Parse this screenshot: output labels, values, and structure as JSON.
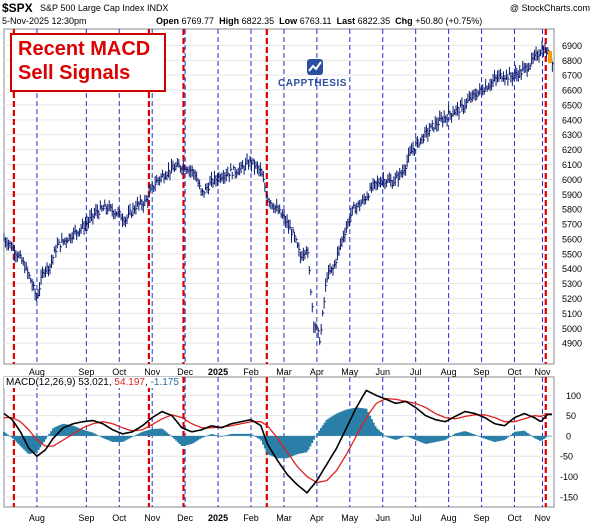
{
  "header": {
    "symbol": "$SPX",
    "name": "S&P 500 Large Cap Index",
    "exchange": "INDX",
    "brand": "@ StockCharts.com",
    "date": "5-Nov-2025 12:30pm",
    "open_label": "Open",
    "open": "6769.77",
    "high_label": "High",
    "high": "6822.35",
    "low_label": "Low",
    "low": "6763.11",
    "last_label": "Last",
    "last": "6822.35",
    "chg_label": "Chg",
    "chg": "+50.80 (+0.75%)"
  },
  "callout": {
    "line1": "Recent MACD",
    "line2": "Sell Signals"
  },
  "brand_logo": {
    "text": "CAPPTHESIS",
    "color": "#2a4f9e"
  },
  "macd_legend": {
    "key": "MACD(12,26,9)",
    "macd": "53.021",
    "signal": "54.197",
    "histogram": "-1.175"
  },
  "colors": {
    "price": "#0b1a6e",
    "macd_line": "#000000",
    "signal_line": "#e02020",
    "histogram": "#2a7fa8",
    "sell_signal": "#dd0000",
    "month_line": "#2233cc"
  },
  "chart_data": [
    {
      "type": "line",
      "subtype": "price-bars",
      "y_ticks": [
        4900,
        5000,
        5100,
        5200,
        5300,
        5400,
        5500,
        5600,
        5700,
        5800,
        5900,
        6000,
        6100,
        6200,
        6300,
        6400,
        6500,
        6600,
        6700,
        6800,
        6900
      ],
      "ylim": [
        4760,
        7010
      ],
      "x_month_labels": [
        "Aug",
        "Sep",
        "Oct",
        "Nov",
        "Dec",
        "2025",
        "Feb",
        "Mar",
        "Apr",
        "May",
        "Jun",
        "Jul",
        "Aug",
        "Sep",
        "Oct",
        "Nov"
      ],
      "x_month_index": [
        0,
        1.5,
        2.5,
        3.5,
        4.5,
        5.5,
        6.5,
        7.5,
        8.5,
        9.5,
        10.5,
        11.5,
        12.5,
        13.5,
        14.5,
        15.35
      ],
      "x_range": [
        -1,
        15.7
      ],
      "series": [
        {
          "x": [
            -1,
            -0.8,
            -0.6,
            -0.4,
            -0.2,
            0,
            0.2,
            0.4,
            0.6,
            0.9,
            1.2,
            1.5,
            1.8,
            2.1,
            2.4,
            2.7,
            3.0,
            3.3,
            3.6,
            3.9,
            4.2,
            4.5,
            4.8,
            5.0,
            5.3,
            5.6,
            5.9,
            6.2,
            6.5,
            6.8,
            7.0,
            7.2,
            7.5,
            7.8,
            8.0,
            8.2,
            8.4,
            8.6,
            8.8,
            9.0,
            9.3,
            9.6,
            9.9,
            10.2,
            10.5,
            10.8,
            11.1,
            11.4,
            11.7,
            12.0,
            12.3,
            12.6,
            12.9,
            13.2,
            13.5,
            13.8,
            14.1,
            14.4,
            14.7,
            15.0,
            15.2,
            15.35,
            15.5,
            15.65
          ],
          "values": [
            5600,
            5560,
            5500,
            5430,
            5330,
            5200,
            5390,
            5420,
            5550,
            5600,
            5650,
            5700,
            5780,
            5810,
            5780,
            5730,
            5820,
            5850,
            5980,
            6040,
            6080,
            6090,
            6040,
            5900,
            5980,
            6030,
            6050,
            6070,
            6120,
            6050,
            5880,
            5820,
            5740,
            5620,
            5480,
            5550,
            5050,
            4920,
            5350,
            5400,
            5620,
            5800,
            5850,
            5950,
            6000,
            5980,
            6050,
            6200,
            6280,
            6350,
            6400,
            6450,
            6480,
            6550,
            6600,
            6650,
            6700,
            6690,
            6720,
            6780,
            6840,
            6880,
            6850,
            6800
          ]
        }
      ],
      "sell_signal_x": [
        -0.7,
        3.4,
        4.45,
        6.98,
        15.45
      ],
      "last_value": 6822.35
    },
    {
      "type": "line",
      "name": "MACD(12,26,9)",
      "y_ticks": [
        -150,
        -100,
        -50,
        0,
        50,
        100
      ],
      "ylim": [
        -175,
        145
      ],
      "series": [
        {
          "name": "MACD",
          "x": [
            -1,
            -0.75,
            -0.5,
            -0.25,
            0,
            0.25,
            0.5,
            0.8,
            1.1,
            1.4,
            1.7,
            2.0,
            2.3,
            2.6,
            2.9,
            3.2,
            3.5,
            3.8,
            4.1,
            4.4,
            4.7,
            5.0,
            5.3,
            5.6,
            5.9,
            6.2,
            6.5,
            6.8,
            7.0,
            7.3,
            7.6,
            7.9,
            8.2,
            8.5,
            8.8,
            9.1,
            9.4,
            9.7,
            10.0,
            10.3,
            10.6,
            10.9,
            11.2,
            11.5,
            11.8,
            12.1,
            12.4,
            12.7,
            13.0,
            13.3,
            13.6,
            13.9,
            14.2,
            14.5,
            14.8,
            15.1,
            15.3,
            15.5,
            15.65
          ],
          "values": [
            55,
            40,
            10,
            -30,
            -50,
            -35,
            -5,
            20,
            30,
            35,
            38,
            30,
            15,
            5,
            10,
            25,
            45,
            60,
            50,
            20,
            10,
            15,
            25,
            20,
            30,
            35,
            40,
            25,
            -20,
            -60,
            -95,
            -120,
            -140,
            -110,
            -70,
            -30,
            20,
            70,
            112,
            100,
            90,
            80,
            85,
            70,
            50,
            40,
            35,
            48,
            60,
            55,
            45,
            30,
            25,
            45,
            55,
            45,
            35,
            53,
            53
          ]
        },
        {
          "name": "Signal",
          "x": [
            -1,
            -0.75,
            -0.5,
            -0.25,
            0,
            0.25,
            0.5,
            0.8,
            1.1,
            1.4,
            1.7,
            2.0,
            2.3,
            2.6,
            2.9,
            3.2,
            3.5,
            3.8,
            4.1,
            4.4,
            4.7,
            5.0,
            5.3,
            5.6,
            5.9,
            6.2,
            6.5,
            6.8,
            7.0,
            7.3,
            7.6,
            7.9,
            8.2,
            8.5,
            8.8,
            9.1,
            9.4,
            9.7,
            10.0,
            10.3,
            10.6,
            10.9,
            11.2,
            11.5,
            11.8,
            12.1,
            12.4,
            12.7,
            13.0,
            13.3,
            13.6,
            13.9,
            14.2,
            14.5,
            14.8,
            15.1,
            15.3,
            15.5,
            15.65
          ],
          "values": [
            45,
            45,
            35,
            15,
            -10,
            -25,
            -25,
            -10,
            5,
            20,
            30,
            35,
            30,
            20,
            12,
            15,
            28,
            42,
            52,
            45,
            30,
            20,
            20,
            22,
            25,
            30,
            35,
            35,
            25,
            -5,
            -40,
            -75,
            -100,
            -115,
            -110,
            -85,
            -45,
            0,
            45,
            80,
            92,
            90,
            85,
            80,
            70,
            55,
            45,
            42,
            48,
            52,
            52,
            45,
            35,
            35,
            42,
            50,
            48,
            54,
            54
          ]
        },
        {
          "name": "Histogram",
          "x": [
            -1,
            -0.75,
            -0.5,
            -0.25,
            0,
            0.25,
            0.5,
            0.8,
            1.1,
            1.4,
            1.7,
            2.0,
            2.3,
            2.6,
            2.9,
            3.2,
            3.5,
            3.8,
            4.1,
            4.4,
            4.7,
            5.0,
            5.3,
            5.6,
            5.9,
            6.2,
            6.5,
            6.8,
            7.0,
            7.3,
            7.6,
            7.9,
            8.2,
            8.5,
            8.8,
            9.1,
            9.4,
            9.7,
            10.0,
            10.3,
            10.6,
            10.9,
            11.2,
            11.5,
            11.8,
            12.1,
            12.4,
            12.7,
            13.0,
            13.3,
            13.6,
            13.9,
            14.2,
            14.5,
            14.8,
            15.1,
            15.3,
            15.5,
            15.65
          ],
          "values": [
            10,
            -5,
            -25,
            -45,
            -40,
            -10,
            20,
            30,
            25,
            15,
            8,
            -5,
            -15,
            -15,
            -2,
            10,
            17,
            18,
            -2,
            -25,
            -20,
            -5,
            5,
            -2,
            5,
            5,
            5,
            -10,
            -45,
            -55,
            -55,
            -45,
            -40,
            5,
            40,
            55,
            65,
            70,
            67,
            20,
            -2,
            -10,
            0,
            -10,
            -20,
            -15,
            -10,
            6,
            12,
            3,
            -7,
            -15,
            -10,
            10,
            13,
            -5,
            -13,
            -1,
            -1
          ]
        }
      ]
    }
  ]
}
